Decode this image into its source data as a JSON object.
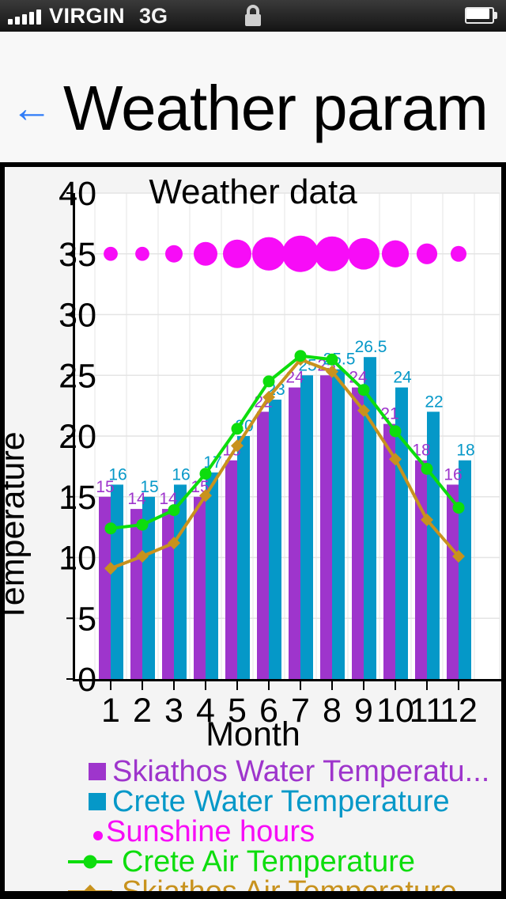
{
  "status_bar": {
    "carrier": "VIRGIN",
    "network": "3G",
    "signal_icon": "signal-bars-icon",
    "lock_icon": "lock-icon",
    "battery_icon": "battery-icon"
  },
  "header": {
    "back_arrow": "←",
    "title": "Weather param"
  },
  "chart_data": {
    "type": "combo",
    "title": "Weather data",
    "xlabel": "Month",
    "ylabel": "Temperature",
    "categories": [
      "1",
      "2",
      "3",
      "4",
      "5",
      "6",
      "7",
      "8",
      "9",
      "10",
      "11",
      "12"
    ],
    "ylim": [
      0,
      40
    ],
    "ytick_step": 5,
    "grid": true,
    "legend_position": "bottom",
    "series": [
      {
        "name": "Skiathos Water Temperature",
        "type": "bar",
        "color": "#9e35cc",
        "values": [
          15,
          14,
          14,
          15,
          18,
          22,
          24,
          25,
          24,
          21,
          18,
          16
        ],
        "show_labels": true
      },
      {
        "name": "Crete Water Temperature",
        "type": "bar",
        "color": "#0598c8",
        "values": [
          16,
          15,
          16,
          17,
          20,
          23,
          25,
          25.5,
          26.5,
          24,
          22,
          18
        ],
        "show_labels": true
      },
      {
        "name": "Sunshine hours",
        "type": "bubble",
        "color": "#f70cf7",
        "row_y": 35,
        "values": [
          4,
          4,
          5.3,
          7.8,
          9.7,
          11.6,
          12.8,
          12.2,
          10.9,
          9.1,
          6.6,
          4.7
        ]
      },
      {
        "name": "Crete Air Temperature",
        "type": "line",
        "marker": "circle",
        "color": "#0ddd0d",
        "values": [
          12.4,
          12.7,
          13.9,
          16.9,
          20.6,
          24.5,
          26.6,
          26.3,
          23.8,
          20.4,
          17.3,
          14.1
        ]
      },
      {
        "name": "Skiathos Air Temperature",
        "type": "line",
        "marker": "diamond",
        "color": "#c8921d",
        "values": [
          9.1,
          10.1,
          11.2,
          15.1,
          19.2,
          23.2,
          26.3,
          25.3,
          22.1,
          18.1,
          13.1,
          10.1
        ]
      }
    ],
    "legend": [
      {
        "label": "Skiathos Water Temperatu...",
        "swatch": "square",
        "series": 0
      },
      {
        "label": "Crete Water Temperature",
        "swatch": "square",
        "series": 1
      },
      {
        "label": "Sunshine hours",
        "swatch": "dot",
        "series": 2
      },
      {
        "label": "Crete Air Temperature",
        "swatch": "line-circle",
        "series": 3
      },
      {
        "label": "Skiathos Air Temperature",
        "swatch": "line-diamond",
        "series": 4
      }
    ]
  }
}
